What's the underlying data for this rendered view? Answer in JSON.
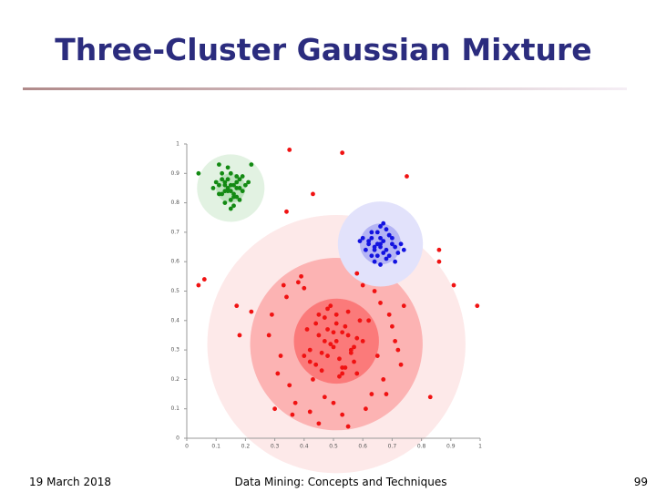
{
  "chart_data": {
    "type": "scatter",
    "title": "Three-Cluster Gaussian Mixture",
    "xlim": [
      0,
      1
    ],
    "ylim": [
      0,
      1
    ],
    "xticks": [
      0,
      0.1,
      0.2,
      0.3,
      0.4,
      0.5,
      0.6,
      0.7,
      0.8,
      0.9,
      1
    ],
    "yticks": [
      0,
      0.1,
      0.2,
      0.3,
      0.4,
      0.5,
      0.6,
      0.7,
      0.8,
      0.9,
      1
    ],
    "regions": [
      {
        "cx": 0.51,
        "cy": 0.32,
        "r": 0.44,
        "color": "#fde9e9"
      },
      {
        "cx": 0.51,
        "cy": 0.32,
        "r": 0.294,
        "color": "#fcb3b3"
      },
      {
        "cx": 0.51,
        "cy": 0.33,
        "r": 0.145,
        "color": "#fb7a7a"
      },
      {
        "cx": 0.66,
        "cy": 0.66,
        "r": 0.145,
        "color": "#e2e2fb"
      },
      {
        "cx": 0.66,
        "cy": 0.66,
        "r": 0.07,
        "color": "#b4b4f4"
      },
      {
        "cx": 0.15,
        "cy": 0.85,
        "r": 0.115,
        "color": "#e2f2e2"
      },
      {
        "cx": 0.15,
        "cy": 0.85,
        "r": 0.05,
        "color": "#bce2bc"
      }
    ],
    "series": [
      {
        "color": "#138a13",
        "x": [
          0.13,
          0.15,
          0.17,
          0.12,
          0.14,
          0.16,
          0.18,
          0.11,
          0.19,
          0.15,
          0.13,
          0.17,
          0.14,
          0.16,
          0.12,
          0.18,
          0.1,
          0.2,
          0.15,
          0.14,
          0.16,
          0.13,
          0.17,
          0.09,
          0.21,
          0.15,
          0.12,
          0.18,
          0.14,
          0.16,
          0.11,
          0.19,
          0.15,
          0.13,
          0.17,
          0.04,
          0.11,
          0.22
        ],
        "values": [
          0.86,
          0.84,
          0.87,
          0.83,
          0.88,
          0.82,
          0.85,
          0.86,
          0.84,
          0.9,
          0.8,
          0.89,
          0.85,
          0.83,
          0.88,
          0.81,
          0.87,
          0.86,
          0.78,
          0.92,
          0.86,
          0.84,
          0.82,
          0.85,
          0.87,
          0.81,
          0.9,
          0.88,
          0.84,
          0.79,
          0.83,
          0.89,
          0.86,
          0.87,
          0.85,
          0.9,
          0.93,
          0.93
        ]
      },
      {
        "color": "#1212e0",
        "x": [
          0.62,
          0.64,
          0.66,
          0.68,
          0.7,
          0.63,
          0.65,
          0.67,
          0.69,
          0.71,
          0.61,
          0.73,
          0.66,
          0.64,
          0.68,
          0.6,
          0.72,
          0.65,
          0.67,
          0.63,
          0.69,
          0.66,
          0.62,
          0.7,
          0.64,
          0.68,
          0.66,
          0.59,
          0.74,
          0.65,
          0.67,
          0.71,
          0.63,
          0.69,
          0.66
        ],
        "values": [
          0.67,
          0.65,
          0.68,
          0.64,
          0.66,
          0.62,
          0.7,
          0.63,
          0.69,
          0.65,
          0.64,
          0.66,
          0.72,
          0.6,
          0.61,
          0.68,
          0.63,
          0.66,
          0.67,
          0.7,
          0.62,
          0.59,
          0.66,
          0.68,
          0.64,
          0.71,
          0.65,
          0.67,
          0.64,
          0.62,
          0.73,
          0.6,
          0.68,
          0.69,
          0.66
        ]
      },
      {
        "color": "#f01212",
        "x": [
          0.42,
          0.45,
          0.48,
          0.51,
          0.54,
          0.57,
          0.44,
          0.47,
          0.5,
          0.53,
          0.56,
          0.59,
          0.41,
          0.46,
          0.49,
          0.52,
          0.55,
          0.58,
          0.43,
          0.48,
          0.51,
          0.54,
          0.57,
          0.45,
          0.5,
          0.53,
          0.4,
          0.47,
          0.52,
          0.56,
          0.44,
          0.49,
          0.55,
          0.58,
          0.42,
          0.46,
          0.51,
          0.53,
          0.48,
          0.6,
          0.28,
          0.31,
          0.34,
          0.37,
          0.62,
          0.65,
          0.68,
          0.71,
          0.74,
          0.3,
          0.33,
          0.36,
          0.64,
          0.67,
          0.7,
          0.73,
          0.29,
          0.35,
          0.39,
          0.61,
          0.66,
          0.72,
          0.32,
          0.38,
          0.42,
          0.58,
          0.63,
          0.69,
          0.45,
          0.55,
          0.5,
          0.4,
          0.6,
          0.47,
          0.53,
          0.35,
          0.53,
          0.75,
          0.43,
          0.34,
          0.04,
          0.06,
          0.17,
          0.86,
          0.86,
          0.91,
          0.99,
          0.83,
          0.18,
          0.22
        ],
        "values": [
          0.3,
          0.35,
          0.28,
          0.33,
          0.38,
          0.31,
          0.25,
          0.41,
          0.36,
          0.22,
          0.29,
          0.4,
          0.37,
          0.23,
          0.32,
          0.27,
          0.43,
          0.34,
          0.2,
          0.44,
          0.39,
          0.24,
          0.26,
          0.42,
          0.31,
          0.36,
          0.28,
          0.33,
          0.21,
          0.3,
          0.39,
          0.45,
          0.35,
          0.22,
          0.26,
          0.29,
          0.42,
          0.24,
          0.37,
          0.33,
          0.35,
          0.22,
          0.48,
          0.12,
          0.4,
          0.28,
          0.15,
          0.33,
          0.45,
          0.1,
          0.52,
          0.08,
          0.5,
          0.2,
          0.38,
          0.25,
          0.42,
          0.18,
          0.55,
          0.1,
          0.46,
          0.3,
          0.28,
          0.53,
          0.09,
          0.56,
          0.15,
          0.42,
          0.05,
          0.04,
          0.12,
          0.51,
          0.52,
          0.14,
          0.08,
          0.98,
          0.97,
          0.89,
          0.83,
          0.77,
          0.52,
          0.54,
          0.45,
          0.64,
          0.6,
          0.52,
          0.45,
          0.14,
          0.35,
          0.43
        ]
      }
    ]
  },
  "footer": {
    "date": "19 March 2018",
    "center": "Data Mining: Concepts and Techniques",
    "page": "99"
  }
}
